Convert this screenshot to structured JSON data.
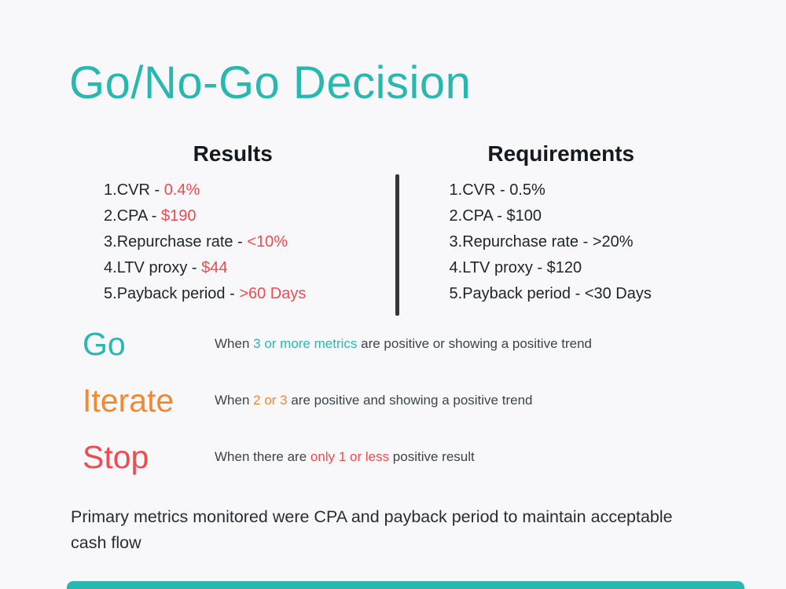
{
  "page": {
    "title": "Go/No-Go Decision",
    "colors": {
      "teal": "#2ab7b0",
      "orange": "#f2882f",
      "red": "#f04b4e"
    }
  },
  "results": {
    "heading": "Results",
    "items": [
      {
        "label": "CVR - ",
        "value": "0.4%"
      },
      {
        "label": "CPA - ",
        "value": "$190"
      },
      {
        "label": "Repurchase rate - ",
        "value": "<10%"
      },
      {
        "label": "LTV proxy - ",
        "value": "$44"
      },
      {
        "label": "Payback period - ",
        "value": ">60 Days"
      }
    ]
  },
  "requirements": {
    "heading": "Requirements",
    "items": [
      {
        "label": "CVR - ",
        "value": "0.5%"
      },
      {
        "label": "CPA - ",
        "value": "$100"
      },
      {
        "label": "Repurchase rate - ",
        "value": ">20%"
      },
      {
        "label": "LTV proxy - ",
        "value": "$120"
      },
      {
        "label": "Payback period - ",
        "value": "<30 Days"
      }
    ]
  },
  "decisions": [
    {
      "label": "Go",
      "prefix": "When ",
      "highlight": "3 or more metrics",
      "suffix": " are positive or showing a positive trend"
    },
    {
      "label": "Iterate",
      "prefix": "When ",
      "highlight": "2 or 3",
      "suffix": " are positive and showing a positive trend"
    },
    {
      "label": "Stop",
      "prefix": "When there are ",
      "highlight": "only 1 or less",
      "suffix": " positive result"
    }
  ],
  "footer": {
    "note": "Primary metrics monitored were CPA and payback period to maintain acceptable cash flow"
  }
}
